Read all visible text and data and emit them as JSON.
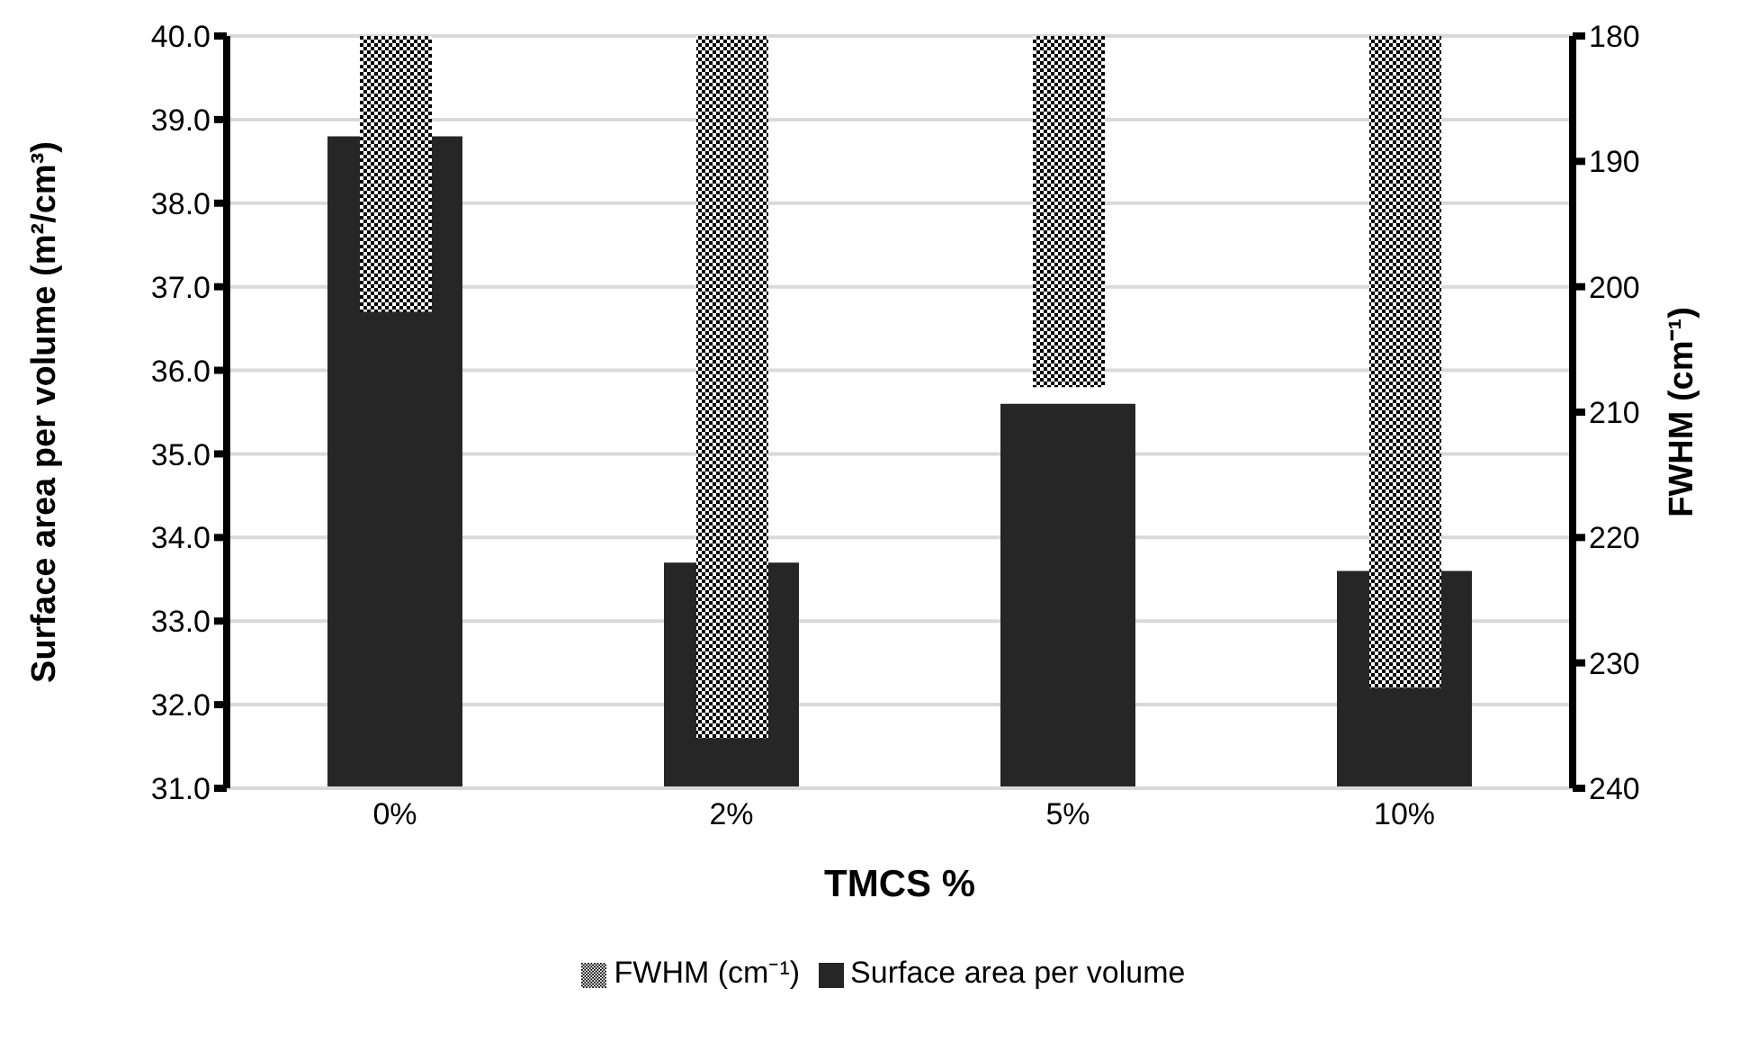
{
  "chart_data": {
    "type": "bar",
    "xlabel": "TMCS %",
    "ylabel": "Surface area per volume (m²/cm³)",
    "y2label": "FWHM (cm⁻¹)",
    "categories": [
      "0%",
      "2%",
      "5%",
      "10%"
    ],
    "series": [
      {
        "name": "Surface area per volume",
        "color": "#262626",
        "values": [
          38.8,
          33.7,
          35.6,
          33.6
        ]
      },
      {
        "name": "FWHM (cm⁻¹)",
        "color": "#000000",
        "axis": "y2",
        "values": [
          202,
          236,
          208,
          232
        ]
      }
    ],
    "ylim": [
      31,
      40
    ],
    "yticks": [
      {
        "value": 31,
        "label": "31.0"
      },
      {
        "value": 32,
        "label": "32.0"
      },
      {
        "value": 33,
        "label": "33.0"
      },
      {
        "value": 34,
        "label": "34.0"
      },
      {
        "value": 35,
        "label": "35.0"
      },
      {
        "value": 36,
        "label": "36.0"
      },
      {
        "value": 37,
        "label": "37.0"
      },
      {
        "value": 38,
        "label": "38.0"
      },
      {
        "value": 39,
        "label": "39.0"
      },
      {
        "value": 40,
        "label": "40.0"
      }
    ],
    "y2lim": [
      240,
      180
    ],
    "y2ticks": [
      180,
      190,
      200,
      210,
      220,
      230,
      240
    ],
    "grid": "y",
    "legend": "bottom"
  }
}
